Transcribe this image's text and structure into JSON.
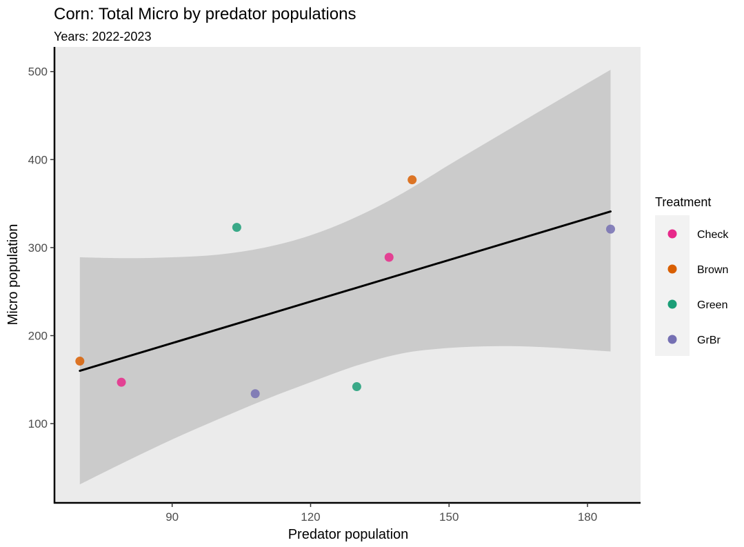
{
  "chart_data": {
    "type": "scatter",
    "title": "Corn: Total Micro by predator populations",
    "subtitle": "Years: 2022-2023",
    "xlabel": "Predator population",
    "ylabel": "Micro population",
    "xlim": [
      64.5,
      191.5
    ],
    "ylim": [
      10,
      528
    ],
    "x_ticks": [
      90,
      120,
      150,
      180
    ],
    "y_ticks": [
      100,
      200,
      300,
      400,
      500
    ],
    "grid": false,
    "panel_background": "#ebebeb",
    "legend": {
      "title": "Treatment",
      "position": "right",
      "entries": [
        {
          "label": "Check",
          "color": "#e7298a"
        },
        {
          "label": "Brown",
          "color": "#d95f02"
        },
        {
          "label": "Green",
          "color": "#1b9e77"
        },
        {
          "label": "GrBr",
          "color": "#7570b3"
        }
      ]
    },
    "points": [
      {
        "treatment": "Brown",
        "x": 70,
        "y": 171
      },
      {
        "treatment": "Check",
        "x": 79,
        "y": 147
      },
      {
        "treatment": "Green",
        "x": 104,
        "y": 323
      },
      {
        "treatment": "GrBr",
        "x": 108,
        "y": 134
      },
      {
        "treatment": "Green",
        "x": 130,
        "y": 142
      },
      {
        "treatment": "Check",
        "x": 137,
        "y": 289
      },
      {
        "treatment": "Brown",
        "x": 142,
        "y": 377
      },
      {
        "treatment": "GrBr",
        "x": 185,
        "y": 321
      }
    ],
    "trend_line": {
      "type": "linear fit",
      "x": [
        70,
        185
      ],
      "y": [
        160,
        341
      ]
    },
    "confidence_band": {
      "x": [
        70,
        80,
        90,
        100,
        110,
        120,
        130,
        140,
        150,
        160,
        170,
        185
      ],
      "upper": [
        289,
        288,
        289,
        292,
        300,
        314,
        335,
        362,
        394,
        425,
        456,
        502
      ],
      "lower": [
        31,
        57,
        82,
        105,
        127,
        147,
        166,
        180,
        186,
        188,
        187,
        182
      ]
    }
  }
}
